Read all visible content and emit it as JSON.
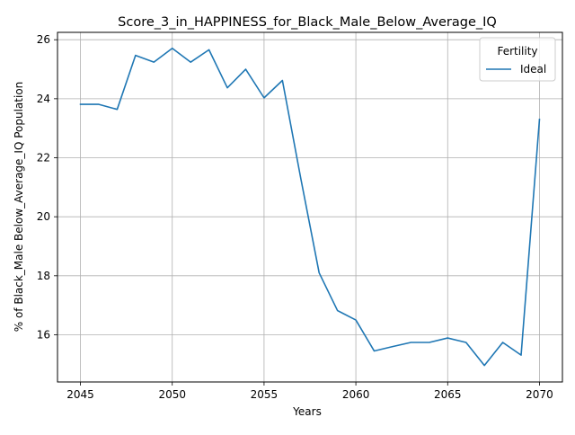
{
  "chart_data": {
    "type": "line",
    "title": "Score_3_in_HAPPINESS_for_Black_Male_Below_Average_IQ",
    "xlabel": "Years",
    "ylabel": "% of Black_Male Below_Average_IQ Population",
    "xlim": [
      2043.75,
      2071.25
    ],
    "ylim": [
      14.4,
      26.25
    ],
    "xticks": [
      2045,
      2050,
      2055,
      2060,
      2065,
      2070
    ],
    "yticks": [
      16,
      18,
      20,
      22,
      24,
      26
    ],
    "grid": true,
    "legend": {
      "title": "Fertility",
      "placement": "top-right"
    },
    "x": [
      2045,
      2046,
      2047,
      2048,
      2049,
      2050,
      2051,
      2052,
      2053,
      2054,
      2055,
      2056,
      2057,
      2058,
      2059,
      2060,
      2061,
      2062,
      2063,
      2064,
      2065,
      2066,
      2067,
      2068,
      2069,
      2070
    ],
    "series": [
      {
        "name": "Ideal",
        "color": "#1f77b4",
        "values": [
          23.81,
          23.81,
          23.64,
          25.47,
          25.24,
          25.71,
          25.24,
          25.66,
          24.37,
          25.0,
          24.03,
          24.62,
          21.3,
          18.1,
          16.82,
          16.5,
          15.45,
          15.6,
          15.74,
          15.74,
          15.89,
          15.74,
          14.96,
          15.74,
          15.31,
          23.3
        ]
      }
    ]
  }
}
